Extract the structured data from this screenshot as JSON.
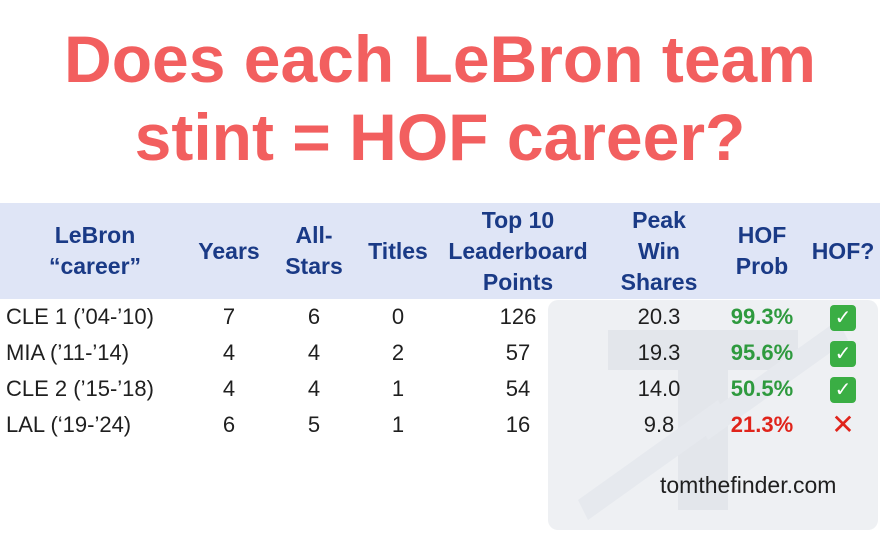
{
  "title": [
    "Does each LeBron team",
    "stint = HOF career?"
  ],
  "headers": {
    "career": [
      "LeBron",
      "“career”"
    ],
    "years": [
      "Years"
    ],
    "all_stars": [
      "All-",
      "Stars"
    ],
    "titles": [
      "Titles"
    ],
    "top10": [
      "Top 10",
      "Leaderboard",
      "Points"
    ],
    "peak_ws": [
      "Peak",
      "Win",
      "Shares"
    ],
    "hof_prob": [
      "HOF",
      "Prob"
    ],
    "hof": [
      "HOF?"
    ]
  },
  "rows": [
    {
      "team": "CLE 1 (’04-’10)",
      "years": "7",
      "all_stars": "6",
      "titles": "0",
      "top10": "126",
      "peak_ws": "20.3",
      "hof_prob": "99.3%",
      "prob_color": "#2e9a3e",
      "hof": "check-mark-icon",
      "hof_glyph": "✓"
    },
    {
      "team": "MIA (’11-’14)",
      "years": "4",
      "all_stars": "4",
      "titles": "2",
      "top10": "57",
      "peak_ws": "19.3",
      "hof_prob": "95.6%",
      "prob_color": "#2e9a3e",
      "hof": "check-mark-icon",
      "hof_glyph": "✓"
    },
    {
      "team": "CLE 2 (’15-’18)",
      "years": "4",
      "all_stars": "4",
      "titles": "1",
      "top10": "54",
      "peak_ws": "14.0",
      "hof_prob": "50.5%",
      "prob_color": "#2e9a3e",
      "hof": "check-mark-icon",
      "hof_glyph": "✓"
    },
    {
      "team": "LAL (‘19-’24)",
      "years": "6",
      "all_stars": "5",
      "titles": "1",
      "top10": "16",
      "peak_ws": "9.8",
      "hof_prob": "21.3%",
      "prob_color": "#e0241b",
      "hof": "cross-mark-icon",
      "hof_glyph": "✕"
    }
  ],
  "credit": "tomthefinder.com",
  "colors": {
    "title": "#f25f5f",
    "header_bg": "#dfe5f6",
    "header_text": "#1a3a86"
  }
}
